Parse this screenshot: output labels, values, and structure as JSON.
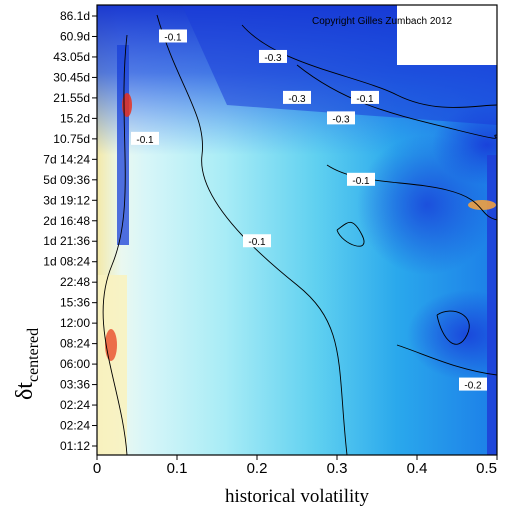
{
  "chart_data": {
    "type": "heatmap",
    "title": "",
    "copyright": "Copyright Gilles Zumbach 2012",
    "xlabel": "historical volatility",
    "ylabel_main": "δt",
    "ylabel_sub": "centered",
    "xlim": [
      0,
      0.5
    ],
    "x_ticks": [
      0,
      0.1,
      0.2,
      0.3,
      0.4,
      0.5
    ],
    "x_tick_labels": [
      "0",
      "0.1",
      "0.2",
      "0.3",
      "0.4",
      "0.5"
    ],
    "y_tick_labels": [
      "86.1d",
      "60.9d",
      "43.05d",
      "30.45d",
      "21.55d",
      "15.2d",
      "10.75d",
      "7d 14:24",
      "5d 09:36",
      "3d 19:12",
      "2d 16:48",
      "1d 21:36",
      "1d 08:24",
      "22:48",
      "15:36",
      "12:00",
      "08:24",
      "06:00",
      "03:36",
      "02:24",
      "02:24",
      "01:12"
    ],
    "grid": false,
    "legend": "none",
    "contour_labels": [
      {
        "text": "-0.1",
        "x": 0.095,
        "y": 60.9
      },
      {
        "text": "-0.3",
        "x": 0.22,
        "y": 43.05
      },
      {
        "text": "-0.3",
        "x": 0.25,
        "y": 21.55
      },
      {
        "text": "-0.3",
        "x": 0.305,
        "y": 15.2
      },
      {
        "text": "-0.1",
        "x": 0.335,
        "y": 21.55
      },
      {
        "text": "-0.1",
        "x": 0.33,
        "y": 5.4
      },
      {
        "text": "-0.1",
        "x": 0.2,
        "y": 1.9
      },
      {
        "text": "-0.2",
        "x": 0.47,
        "y": 0.15
      },
      {
        "text": "-0.1",
        "x": 0.06,
        "y": 10.75
      }
    ],
    "colors": {
      "strong_negative": "#1030d0",
      "negative": "#2a6ef0",
      "mild_negative": "#22b8ec",
      "near_zero": "#b8f0f6",
      "positive": "#f2e6a0",
      "strong_positive": "#e83020",
      "contour": "#000000"
    }
  }
}
